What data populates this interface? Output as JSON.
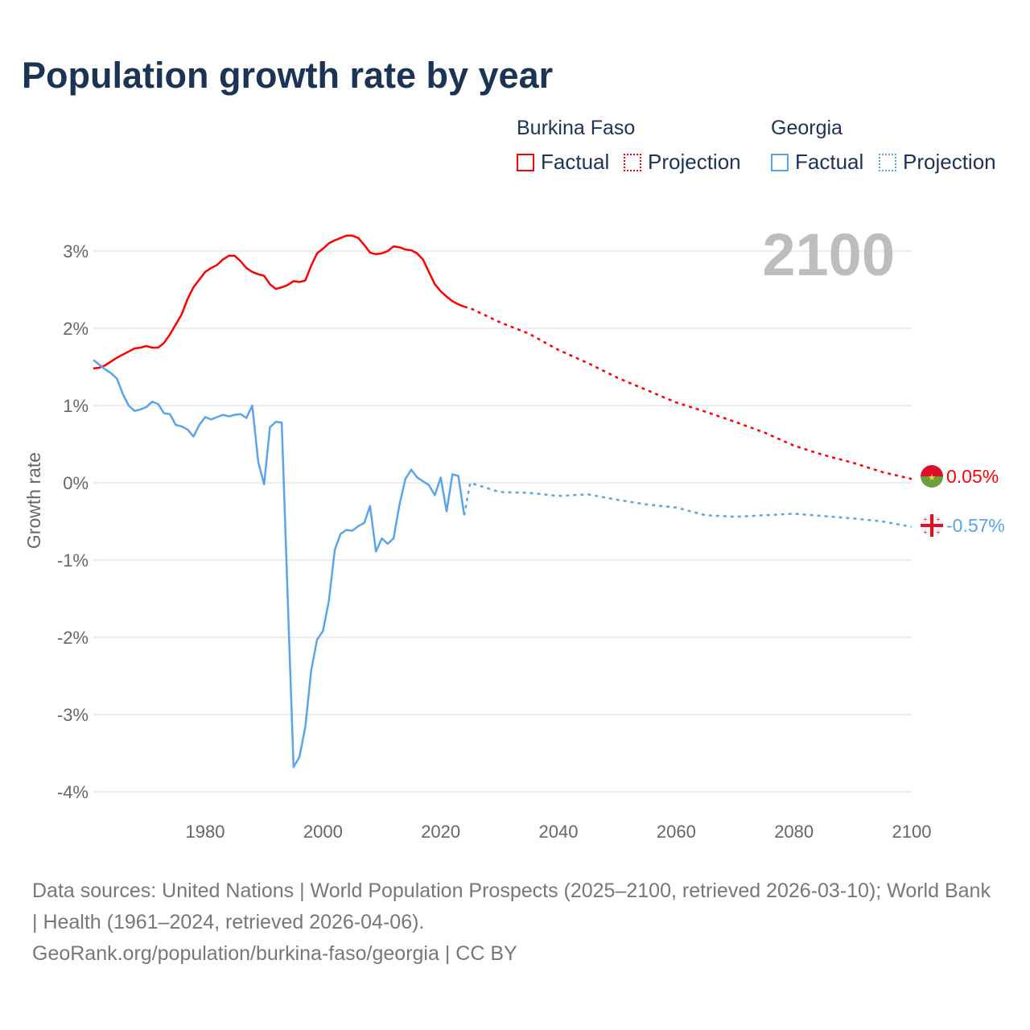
{
  "title": "Population growth rate by year",
  "legend": {
    "groups": [
      {
        "name": "Burkina Faso",
        "factual": "Factual",
        "projection": "Projection",
        "color": "#ff0000"
      },
      {
        "name": "Georgia",
        "factual": "Factual",
        "projection": "Projection",
        "color": "#5aa5ea"
      }
    ]
  },
  "year_label": "2100",
  "end_labels": {
    "burkina": "0.05%",
    "georgia": "-0.57%"
  },
  "footer": {
    "line1": "Data sources: United Nations | World Population Prospects (2025–2100, retrieved 2026-03-10); World Bank | Health (1961–2024, retrieved 2026-04-06).",
    "line2": "GeoRank.org/population/burkina-faso/georgia | CC BY"
  },
  "chart_data": {
    "type": "line",
    "title": "Population growth rate by year",
    "xlabel": "",
    "ylabel": "Growth rate",
    "xlim": [
      1961,
      2100
    ],
    "ylim": [
      -4,
      3
    ],
    "x_ticks": [
      1980,
      2000,
      2020,
      2040,
      2060,
      2080,
      2100
    ],
    "x_tick_labels": [
      "1980",
      "2000",
      "2020",
      "2040",
      "2060",
      "2080",
      "2100"
    ],
    "y_ticks": [
      3,
      2,
      1,
      0,
      -1,
      -2,
      -3,
      -4
    ],
    "y_tick_labels": [
      "3%",
      "2%",
      "1%",
      "0%",
      "-1%",
      "-2%",
      "-3%",
      "-4%"
    ],
    "grid": true,
    "legend_position": "top-right",
    "series": [
      {
        "name": "Burkina Faso Factual",
        "color": "#ff0000",
        "style": "solid",
        "start_year": 1961,
        "values": [
          1.48,
          1.49,
          1.52,
          1.57,
          1.62,
          1.66,
          1.7,
          1.74,
          1.75,
          1.77,
          1.75,
          1.75,
          1.81,
          1.92,
          2.05,
          2.18,
          2.38,
          2.53,
          2.63,
          2.73,
          2.78,
          2.82,
          2.89,
          2.94,
          2.94,
          2.87,
          2.78,
          2.73,
          2.7,
          2.68,
          2.57,
          2.51,
          2.53,
          2.56,
          2.61,
          2.6,
          2.62,
          2.81,
          2.97,
          3.03,
          3.1,
          3.14,
          3.17,
          3.2,
          3.2,
          3.17,
          3.08,
          2.98,
          2.96,
          2.97,
          3.0,
          3.06,
          3.05,
          3.02,
          3.01,
          2.97,
          2.89,
          2.73,
          2.57,
          2.48,
          2.41,
          2.35,
          2.31,
          2.28
        ]
      },
      {
        "name": "Burkina Faso Projection",
        "color": "#ff0000",
        "style": "dotted",
        "x": [
          2024,
          2025,
          2030,
          2035,
          2040,
          2045,
          2050,
          2055,
          2060,
          2065,
          2070,
          2075,
          2080,
          2085,
          2090,
          2095,
          2100
        ],
        "values": [
          2.28,
          2.26,
          2.08,
          1.93,
          1.72,
          1.55,
          1.36,
          1.2,
          1.04,
          0.92,
          0.79,
          0.65,
          0.48,
          0.36,
          0.26,
          0.14,
          0.05
        ]
      },
      {
        "name": "Georgia Factual",
        "color": "#5aa5ea",
        "style": "solid",
        "start_year": 1961,
        "values": [
          1.59,
          1.53,
          1.47,
          1.42,
          1.35,
          1.15,
          1.0,
          0.93,
          0.95,
          0.98,
          1.05,
          1.02,
          0.9,
          0.89,
          0.75,
          0.73,
          0.69,
          0.6,
          0.75,
          0.85,
          0.82,
          0.85,
          0.88,
          0.86,
          0.88,
          0.89,
          0.84,
          1.0,
          0.27,
          -0.02,
          0.72,
          0.79,
          0.78,
          -1.45,
          -3.68,
          -3.55,
          -3.16,
          -2.43,
          -2.03,
          -1.92,
          -1.53,
          -0.87,
          -0.66,
          -0.61,
          -0.62,
          -0.56,
          -0.52,
          -0.3,
          -0.89,
          -0.72,
          -0.79,
          -0.72,
          -0.28,
          0.05,
          0.17,
          0.07,
          0.02,
          -0.03,
          -0.16,
          0.07,
          -0.37,
          0.11,
          0.09,
          -0.42
        ]
      },
      {
        "name": "Georgia Projection",
        "color": "#5aa5ea",
        "style": "dotted",
        "x": [
          2024,
          2025,
          2030,
          2035,
          2040,
          2045,
          2050,
          2055,
          2060,
          2065,
          2070,
          2075,
          2080,
          2085,
          2090,
          2095,
          2100
        ],
        "values": [
          -0.42,
          0.0,
          -0.12,
          -0.13,
          -0.17,
          -0.15,
          -0.22,
          -0.28,
          -0.32,
          -0.42,
          -0.44,
          -0.42,
          -0.4,
          -0.43,
          -0.46,
          -0.5,
          -0.57
        ]
      }
    ]
  }
}
